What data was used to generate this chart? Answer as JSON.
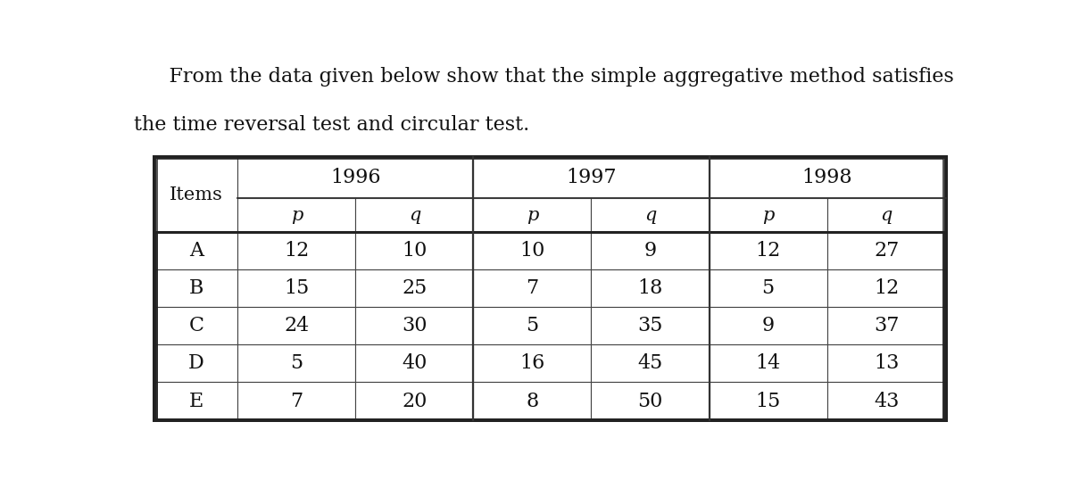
{
  "title_line1": "    From the data given below show that the simple aggregative method satisfies",
  "title_line2": "the time reversal test and circular test.",
  "years": [
    "1996",
    "1997",
    "1998"
  ],
  "col_headers": [
    "p",
    "q",
    "p",
    "q",
    "p",
    "q"
  ],
  "items": [
    "A",
    "B",
    "C",
    "D",
    "E"
  ],
  "table_data": [
    [
      12,
      10,
      10,
      9,
      12,
      27
    ],
    [
      15,
      25,
      7,
      18,
      5,
      12
    ],
    [
      24,
      30,
      5,
      35,
      9,
      37
    ],
    [
      5,
      40,
      16,
      45,
      14,
      13
    ],
    [
      7,
      20,
      8,
      50,
      15,
      43
    ]
  ],
  "bg_color": "#ffffff",
  "text_color": "#111111",
  "font_size_title": 16,
  "font_size_header": 15,
  "font_size_data": 16,
  "font_size_year": 16,
  "font_size_items_label": 15
}
